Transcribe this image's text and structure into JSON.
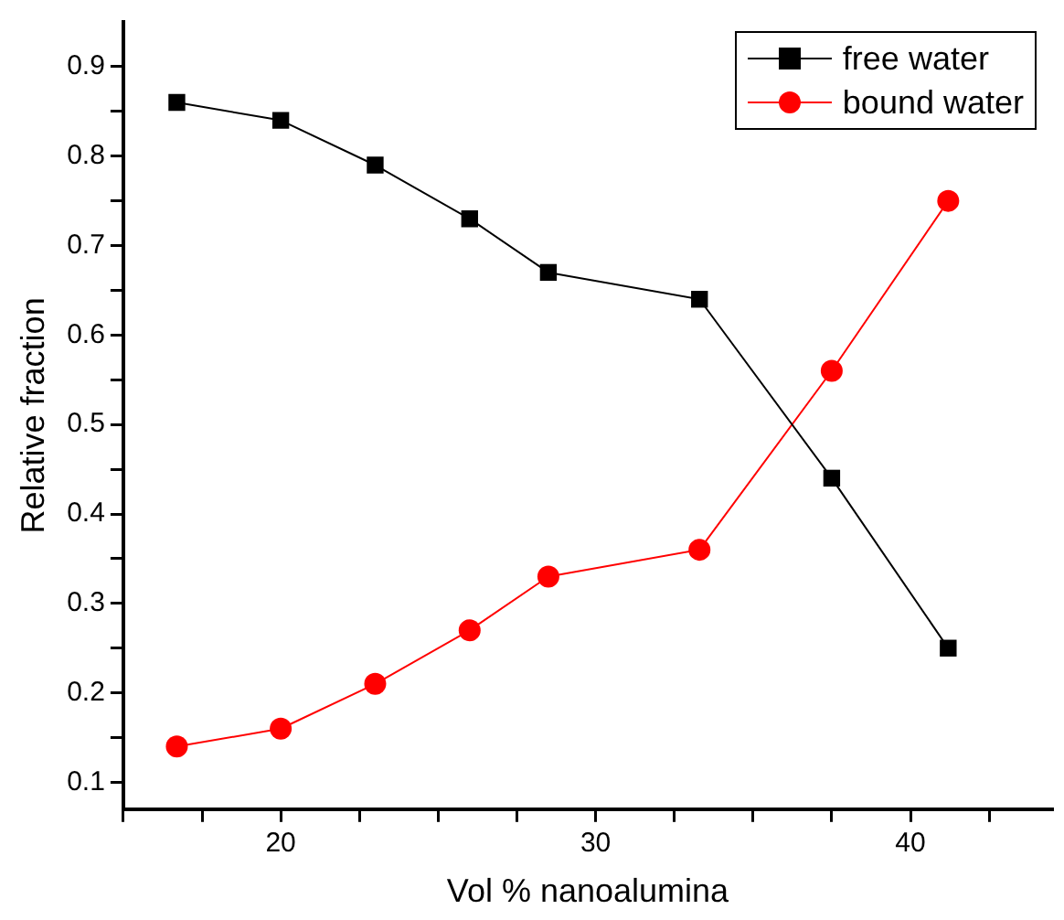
{
  "chart_data": {
    "type": "line",
    "xlabel": "Vol % nanoalumina",
    "ylabel": "Relative fraction",
    "x": [
      16.7,
      20,
      23,
      26,
      28.5,
      33.3,
      37.5,
      41.2
    ],
    "series": [
      {
        "name": "free water",
        "color": "#000000",
        "marker": "square",
        "values": [
          0.86,
          0.84,
          0.79,
          0.73,
          0.67,
          0.64,
          0.44,
          0.25
        ]
      },
      {
        "name": "bound water",
        "color": "#ff0000",
        "marker": "circle",
        "values": [
          0.14,
          0.16,
          0.21,
          0.27,
          0.33,
          0.36,
          0.56,
          0.75
        ]
      }
    ],
    "xlim": [
      15,
      44.5
    ],
    "xticks": [
      {
        "value": 15,
        "label": null
      },
      {
        "value": 17.5,
        "label": null
      },
      20,
      {
        "value": 22.5,
        "label": null
      },
      {
        "value": 25,
        "label": null
      },
      {
        "value": 27.5,
        "label": null
      },
      30,
      {
        "value": 32.5,
        "label": null
      },
      {
        "value": 35,
        "label": null
      },
      {
        "value": 37.5,
        "label": null
      },
      40,
      {
        "value": 42.5,
        "label": null
      }
    ],
    "ylim": [
      0.07,
      0.95
    ],
    "yticks": [
      0.1,
      {
        "value": 0.15,
        "label": null
      },
      0.2,
      {
        "value": 0.25,
        "label": null
      },
      0.3,
      {
        "value": 0.35,
        "label": null
      },
      0.4,
      {
        "value": 0.45,
        "label": null
      },
      0.5,
      {
        "value": 0.55,
        "label": null
      },
      0.6,
      {
        "value": 0.65,
        "label": null
      },
      0.7,
      {
        "value": 0.75,
        "label": null
      },
      0.8,
      {
        "value": 0.85,
        "label": null
      },
      0.9
    ],
    "grid": false,
    "legend": "top right",
    "line_style": "solid"
  }
}
